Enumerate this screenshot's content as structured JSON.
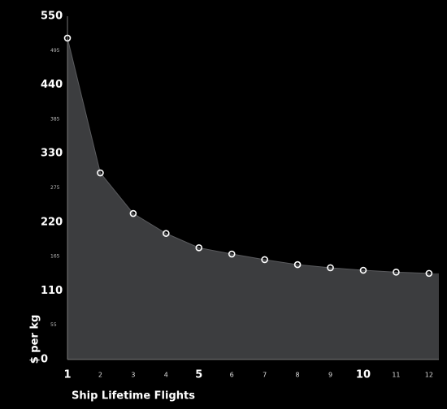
{
  "chart_data": {
    "type": "area",
    "x": [
      1,
      2,
      3,
      4,
      5,
      6,
      7,
      8,
      9,
      10,
      11,
      12
    ],
    "values": [
      515,
      299,
      234,
      202,
      179,
      169,
      160,
      152,
      147,
      143,
      140,
      138
    ],
    "x_label": "Ship Lifetime Flights",
    "y_label": "$ per kg",
    "xlim": [
      1,
      12.3
    ],
    "xticks": [
      1,
      2,
      3,
      4,
      5,
      6,
      7,
      8,
      9,
      10,
      11,
      12
    ],
    "xticks_major": [
      1,
      5,
      10
    ],
    "ylim": [
      0,
      550
    ],
    "yticks": [
      0,
      55,
      110,
      165,
      220,
      275,
      330,
      385,
      440,
      495,
      550
    ],
    "yticks_major": [
      0,
      110,
      220,
      330,
      440,
      550
    ],
    "color": "#3c3d3f",
    "marker_color": "#ffffff"
  }
}
